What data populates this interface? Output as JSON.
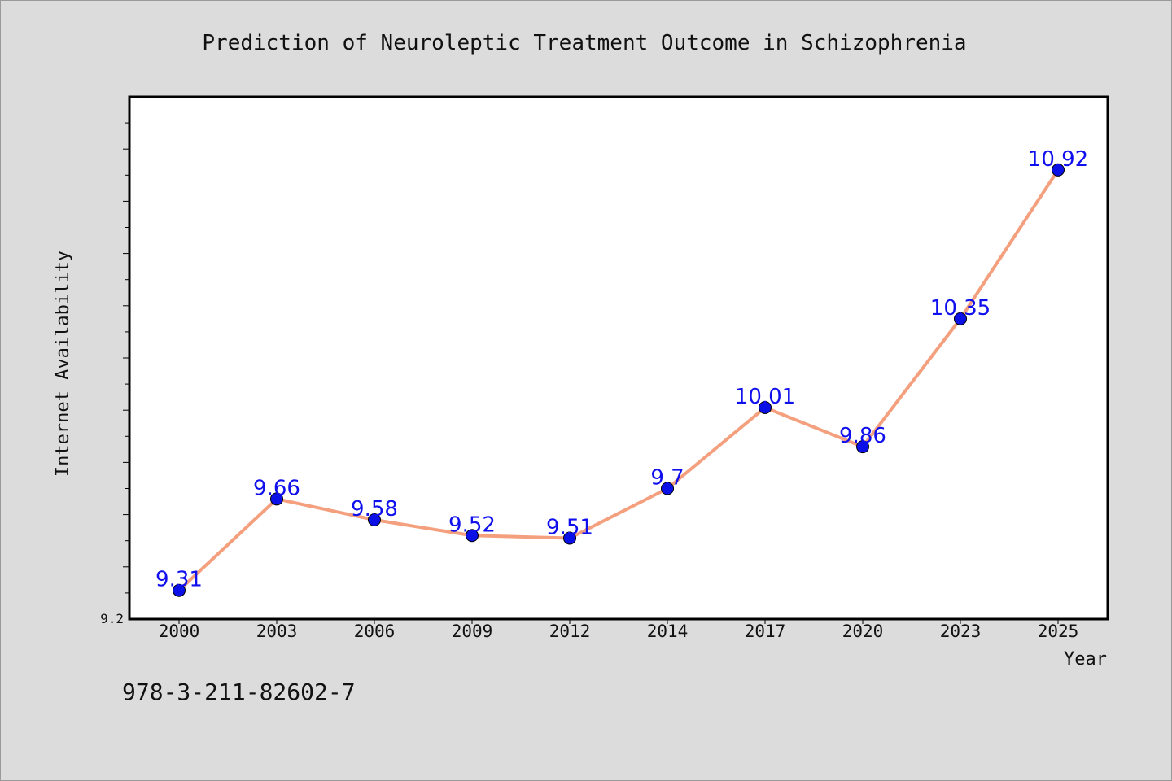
{
  "chart_data": {
    "type": "line",
    "title": "Prediction of Neuroleptic Treatment Outcome in Schizophrenia",
    "xlabel": "Year",
    "ylabel": "Internet Availability",
    "categories": [
      "2000",
      "2003",
      "2006",
      "2009",
      "2012",
      "2014",
      "2017",
      "2020",
      "2023",
      "2025"
    ],
    "series": [
      {
        "values": [
          9.31,
          9.66,
          9.58,
          9.52,
          9.51,
          9.7,
          10.01,
          9.86,
          10.35,
          10.92
        ]
      }
    ],
    "data_labels": [
      "9.31",
      "9.66",
      "9.58",
      "9.52",
      "9.51",
      "9.7",
      "10.01",
      "9.86",
      "10.35",
      "10.92"
    ],
    "ytick_label": "9.2",
    "ylim": [
      9.2,
      11.2
    ],
    "grid": false,
    "legend": "none",
    "colors": {
      "line": "#f4a07e",
      "marker": "#0a10e6",
      "data_label": "#1010ee",
      "text": "#111111",
      "plot_bg": "#ffffff",
      "page_bg": "#dcdcdc"
    }
  },
  "footer": {
    "isbn": "978-3-211-82602-7"
  }
}
